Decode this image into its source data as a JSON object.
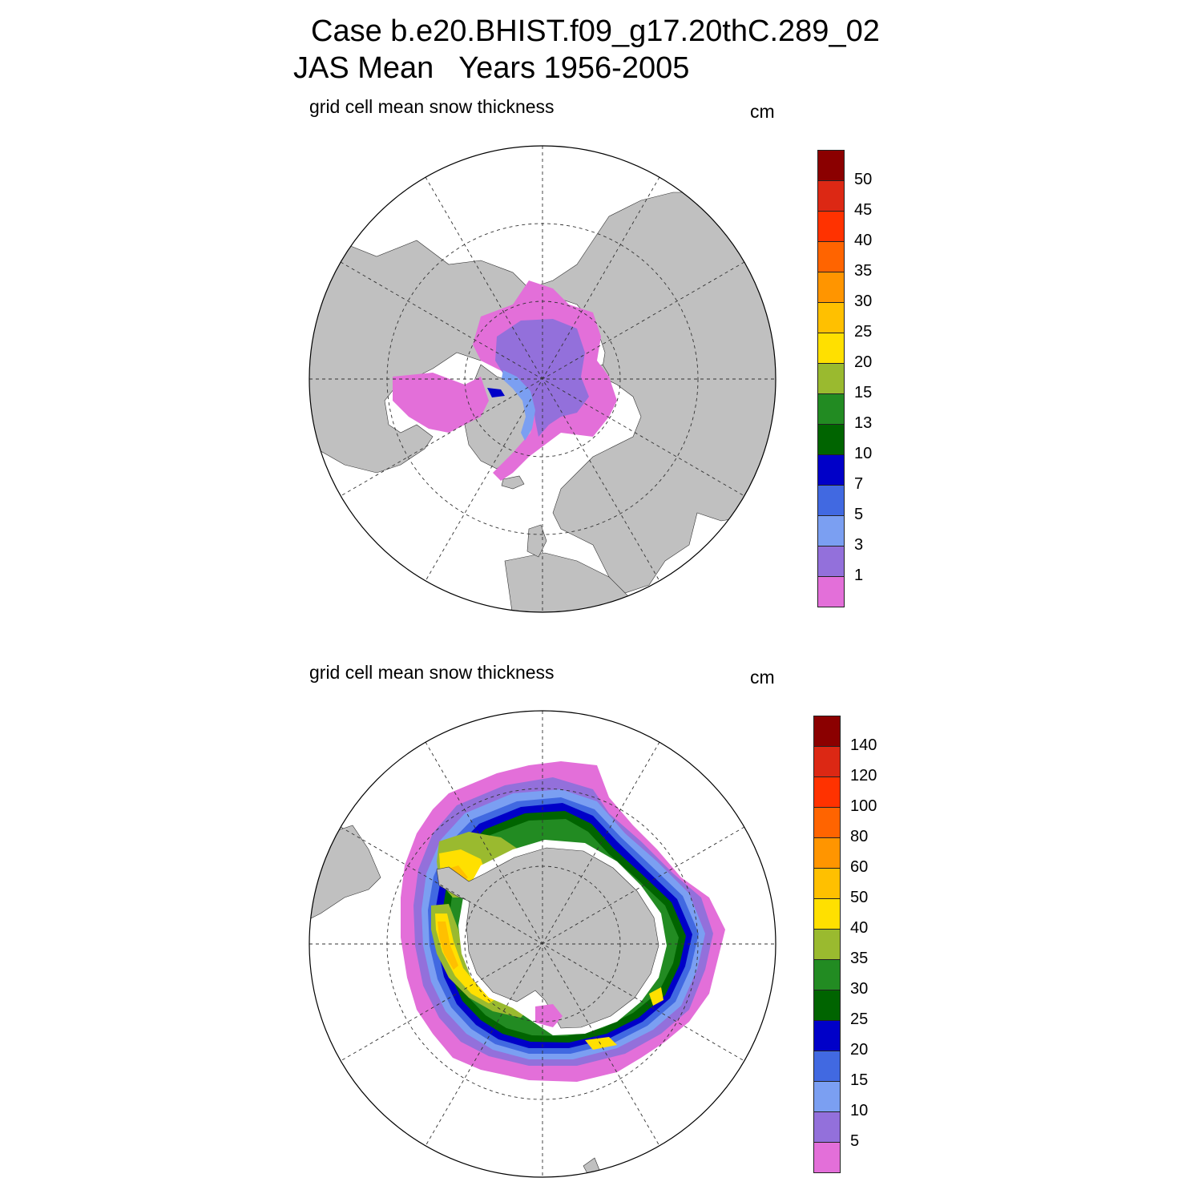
{
  "header": {
    "title_line1": "Case b.e20.BHIST.f09_g17.20thC.289_02",
    "title_line2": "JAS Mean   Years 1956-2005"
  },
  "colors": {
    "land": "#c0c0c0",
    "ocean": "#ffffff",
    "scale": [
      "#e36fd9",
      "#9370db",
      "#7b9ff2",
      "#4169e1",
      "#0000c8",
      "#006400",
      "#228b22",
      "#9aba2f",
      "#ffe000",
      "#ffc000",
      "#ff9500",
      "#ff6400",
      "#ff3200",
      "#dc2814",
      "#8b0000"
    ]
  },
  "panels": [
    {
      "id": "arctic",
      "subtitle": "grid cell mean snow thickness",
      "units": "cm",
      "colorbar_labels": [
        "50",
        "45",
        "40",
        "35",
        "30",
        "25",
        "20",
        "15",
        "13",
        "10",
        "7",
        "5",
        "3",
        "1"
      ]
    },
    {
      "id": "antarctic",
      "subtitle": "grid cell mean snow thickness",
      "units": "cm",
      "colorbar_labels": [
        "140",
        "120",
        "100",
        "80",
        "60",
        "50",
        "40",
        "35",
        "30",
        "25",
        "20",
        "15",
        "10",
        "5"
      ]
    }
  ]
}
